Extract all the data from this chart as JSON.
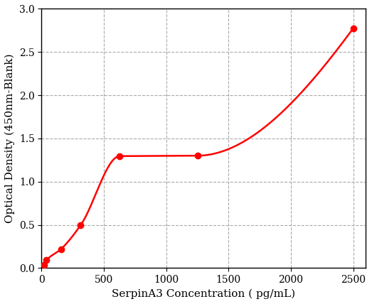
{
  "x": [
    19.531,
    39.063,
    156.25,
    312.5,
    625,
    1250,
    2500
  ],
  "y": [
    0.04,
    0.09,
    0.22,
    0.495,
    1.295,
    1.3,
    2.775
  ],
  "line_color": "#FF0000",
  "marker_color": "#FF0000",
  "marker_size": 6,
  "linewidth": 1.8,
  "xlabel": "SerpinA3 Concentration ( pg/mL)",
  "ylabel": "Optical Density (450nm-Blank)",
  "xlim": [
    0,
    2600
  ],
  "ylim": [
    0,
    3.0
  ],
  "xticks": [
    0,
    500,
    1000,
    1500,
    2000,
    2500
  ],
  "yticks": [
    0,
    0.5,
    1.0,
    1.5,
    2.0,
    2.5,
    3.0
  ],
  "grid_color": "#aaaaaa",
  "grid_linestyle": "--",
  "grid_linewidth": 0.8,
  "background_color": "#FFFFFF",
  "xlabel_fontsize": 11,
  "ylabel_fontsize": 11,
  "tick_fontsize": 10
}
